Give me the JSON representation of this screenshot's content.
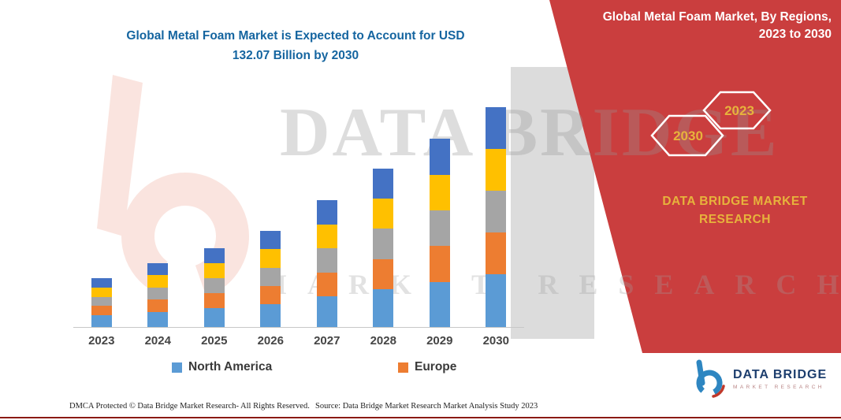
{
  "header": {
    "title_line1": "Global Metal Foam Market is Expected to Account for USD",
    "title_line2": "132.07 Billion by 2030"
  },
  "side_panel": {
    "title_line1": "Global Metal Foam Market, By Regions,",
    "title_line2": "2023 to 2030",
    "hexagons": [
      {
        "label": "2030"
      },
      {
        "label": "2023"
      }
    ],
    "brand_line1": "DATA BRIDGE MARKET",
    "brand_line2": "RESEARCH"
  },
  "watermark": {
    "line1": "DATA BRIDGE",
    "line2": "MARKET RESEARCH"
  },
  "logo": {
    "title": "DATA BRIDGE",
    "subtitle": "MARKET RESEARCH"
  },
  "footer": {
    "dmca": "DMCA Protected © Data Bridge Market Research-  All Rights Reserved.",
    "source": "Source: Data Bridge Market Research  Market Analysis Study 2023"
  },
  "colors": {
    "panel_red": "#ca3e3e",
    "gold_text": "#e7b33c",
    "title_blue": "#1565a0",
    "logo_blue": "#2e86c1",
    "logo_navy": "#1d3e6e",
    "bottom_line_red": "#8b1a14"
  },
  "chart_data": {
    "type": "bar",
    "stacked": true,
    "title": "Global Metal Foam Market is Expected to Account for USD 132.07 Billion by 2030",
    "value_unit": "USD Billion",
    "y_axis_visible": false,
    "ylim": [
      0,
      140
    ],
    "categories": [
      "2023",
      "2024",
      "2025",
      "2026",
      "2027",
      "2028",
      "2029",
      "2030"
    ],
    "series": [
      {
        "name": "North America",
        "color": "#5b9bd5",
        "values": [
          7.0,
          9.2,
          11.4,
          13.8,
          18.3,
          22.8,
          27.1,
          31.7
        ]
      },
      {
        "name": "Europe",
        "color": "#ed7d31",
        "values": [
          5.6,
          7.3,
          9.0,
          11.0,
          14.5,
          18.1,
          21.5,
          25.1
        ]
      },
      {
        "name": "",
        "color": "#a5a5a5",
        "values": [
          5.6,
          7.3,
          9.0,
          11.0,
          14.5,
          18.1,
          21.5,
          25.1
        ]
      },
      {
        "name": "",
        "color": "#ffc000",
        "values": [
          5.6,
          7.3,
          9.0,
          11.0,
          14.5,
          18.1,
          21.5,
          25.1
        ]
      },
      {
        "name": "",
        "color": "#4472c4",
        "values": [
          5.5,
          7.2,
          8.9,
          10.9,
          14.3,
          18.0,
          21.4,
          25.07
        ]
      }
    ],
    "totals": [
      29.3,
      38.3,
      47.3,
      57.7,
      76.1,
      95.1,
      113.0,
      132.07
    ],
    "legend": [
      "North America",
      "Europe"
    ],
    "legend_position": "bottom"
  }
}
